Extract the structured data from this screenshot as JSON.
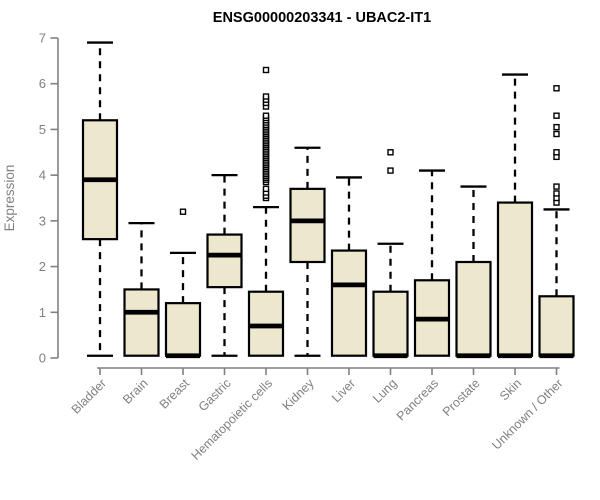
{
  "header": {
    "title": "ENSG00000203341 - UBAC2-IT1"
  },
  "chart_data": {
    "type": "boxplot",
    "title": "ENSG00000203341 - UBAC2-IT1",
    "xlabel": "",
    "ylabel": "Expression",
    "ylim": [
      0,
      7
    ],
    "yticks": [
      0,
      1,
      2,
      3,
      4,
      5,
      6,
      7
    ],
    "grid": "off",
    "legend": "none",
    "categories": [
      "Bladder",
      "Brain",
      "Breast",
      "Gastric",
      "Hematopoietic cells",
      "Kidney",
      "Liver",
      "Lung",
      "Pancreas",
      "Prostate",
      "Skin",
      "Unknown / Other"
    ],
    "series": [
      {
        "name": "Bladder",
        "whisker_low": 0.05,
        "q1": 2.6,
        "median": 3.9,
        "q3": 5.2,
        "whisker_high": 6.9,
        "outliers": []
      },
      {
        "name": "Brain",
        "whisker_low": 0.05,
        "q1": 0.05,
        "median": 1.0,
        "q3": 1.5,
        "whisker_high": 2.95,
        "outliers": []
      },
      {
        "name": "Breast",
        "whisker_low": 0.05,
        "q1": 0.05,
        "median": 0.05,
        "q3": 1.2,
        "whisker_high": 2.3,
        "outliers": [
          3.2
        ]
      },
      {
        "name": "Gastric",
        "whisker_low": 0.05,
        "q1": 1.55,
        "median": 2.25,
        "q3": 2.7,
        "whisker_high": 4.0,
        "outliers": []
      },
      {
        "name": "Hematopoietic cells",
        "whisker_low": 0.05,
        "q1": 0.05,
        "median": 0.7,
        "q3": 1.45,
        "whisker_high": 3.3,
        "outliers": [
          3.5,
          3.55,
          3.62,
          3.7,
          3.85,
          3.9,
          3.94,
          3.98,
          4.02,
          4.06,
          4.1,
          4.14,
          4.18,
          4.22,
          4.26,
          4.3,
          4.34,
          4.38,
          4.42,
          4.46,
          4.5,
          4.54,
          4.58,
          4.62,
          4.66,
          4.7,
          4.74,
          4.78,
          4.82,
          4.86,
          4.9,
          4.94,
          4.98,
          5.02,
          5.06,
          5.1,
          5.15,
          5.2,
          5.25,
          5.3,
          5.5,
          5.58,
          5.65,
          5.72,
          6.3
        ]
      },
      {
        "name": "Kidney",
        "whisker_low": 0.05,
        "q1": 2.1,
        "median": 3.0,
        "q3": 3.7,
        "whisker_high": 4.6,
        "outliers": []
      },
      {
        "name": "Liver",
        "whisker_low": 0.05,
        "q1": 0.05,
        "median": 1.6,
        "q3": 2.35,
        "whisker_high": 3.95,
        "outliers": []
      },
      {
        "name": "Lung",
        "whisker_low": 0.05,
        "q1": 0.05,
        "median": 0.05,
        "q3": 1.45,
        "whisker_high": 2.5,
        "outliers": [
          4.1,
          4.5
        ]
      },
      {
        "name": "Pancreas",
        "whisker_low": 0.05,
        "q1": 0.05,
        "median": 0.85,
        "q3": 1.7,
        "whisker_high": 4.1,
        "outliers": []
      },
      {
        "name": "Prostate",
        "whisker_low": 0.05,
        "q1": 0.05,
        "median": 0.05,
        "q3": 2.1,
        "whisker_high": 3.75,
        "outliers": []
      },
      {
        "name": "Skin",
        "whisker_low": 0.05,
        "q1": 0.05,
        "median": 0.05,
        "q3": 3.4,
        "whisker_high": 6.2,
        "outliers": []
      },
      {
        "name": "Unknown / Other",
        "whisker_low": 0.05,
        "q1": 0.05,
        "median": 0.05,
        "q3": 1.35,
        "whisker_high": 3.25,
        "outliers": [
          3.4,
          3.5,
          3.6,
          3.75,
          4.4,
          4.5,
          4.9,
          5.05,
          5.3,
          5.9
        ]
      }
    ],
    "colors": {
      "box_fill": "#EDE7CE",
      "box_stroke": "#000000",
      "median": "#000000",
      "whisker": "#000000",
      "axis": "#808080",
      "tick_label": "#808080",
      "title": "#000000"
    }
  }
}
